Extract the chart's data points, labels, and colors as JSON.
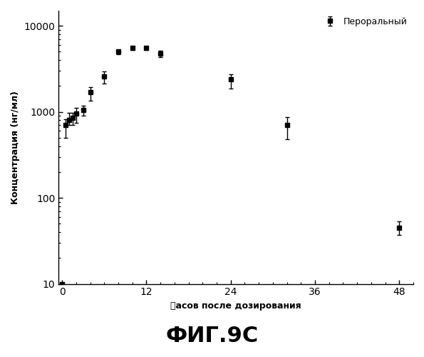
{
  "x": [
    0,
    0.5,
    1,
    1.5,
    2,
    3,
    4,
    6,
    8,
    10,
    12,
    14,
    24,
    32,
    48
  ],
  "y": [
    10,
    700,
    800,
    850,
    950,
    1050,
    1700,
    2600,
    5000,
    5500,
    5500,
    4800,
    2400,
    700,
    45
  ],
  "yerr_low": [
    0,
    200,
    100,
    150,
    200,
    150,
    350,
    450,
    350,
    250,
    250,
    450,
    550,
    220,
    8
  ],
  "yerr_high": [
    0,
    120,
    170,
    120,
    170,
    120,
    250,
    350,
    250,
    200,
    250,
    350,
    350,
    170,
    8
  ],
  "line_color": "#000000",
  "marker": "s",
  "markersize": 4,
  "linewidth": 1.3,
  "xlabel": "䉺асов после дозирования",
  "ylabel": "Концентрация (нг/мл)",
  "legend_label": "Пероральный",
  "title": "ФИГ.9C",
  "xlim": [
    -0.5,
    50
  ],
  "ylim_log": [
    10,
    15000
  ],
  "xticks": [
    0,
    12,
    24,
    36,
    48
  ],
  "yticks": [
    10,
    100,
    1000,
    10000
  ],
  "background_color": "#ffffff",
  "elinewidth": 1.0,
  "capsize": 2,
  "capthick": 1.0
}
